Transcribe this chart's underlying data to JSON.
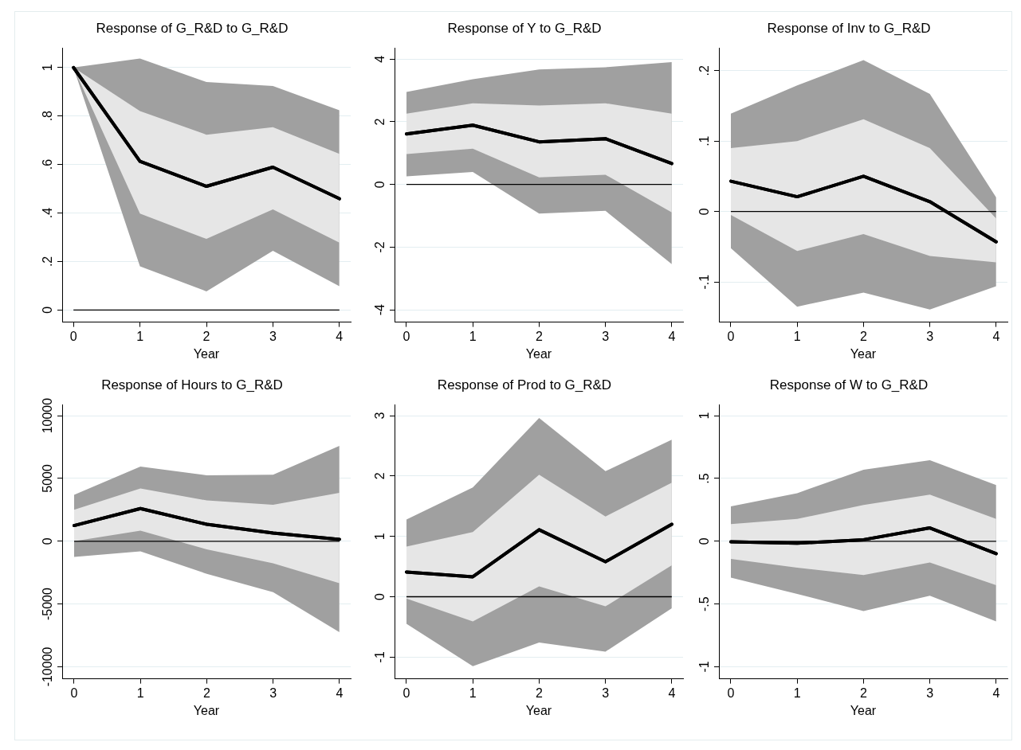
{
  "chart_data": [
    {
      "type": "line",
      "title": "Response of G_R&D to G_R&D",
      "xlabel": "Year",
      "x": [
        0,
        1,
        2,
        3,
        4
      ],
      "xlim": [
        -0.17,
        4.17
      ],
      "xticks": [
        0,
        1,
        2,
        3,
        4
      ],
      "ylim": [
        -0.05,
        1.08
      ],
      "yticks": [
        0,
        {
          "value": 0.2,
          "label": ".2"
        },
        {
          "value": 0.4,
          "label": ".4"
        },
        {
          "value": 0.6,
          "label": ".6"
        },
        {
          "value": 0.8,
          "label": ".8"
        },
        1
      ],
      "grid": "y",
      "legend": false,
      "ref_lines": [
        {
          "axis": "y",
          "value": 0,
          "color": "#000000"
        }
      ],
      "series": [
        {
          "type": "line",
          "color": "#000000",
          "values": [
            1,
            0.613,
            0.51,
            0.589,
            0.459
          ],
          "lower": [
            1,
            0.18,
            0.077,
            0.244,
            0.098
          ],
          "upper": [
            1,
            1.037,
            0.94,
            0.924,
            0.824
          ]
        },
        {
          "type": "line",
          "color": "#000000",
          "values": [
            1,
            0.613,
            0.51,
            0.589,
            0.459
          ],
          "lower": [
            1,
            0.398,
            0.293,
            0.415,
            0.278
          ],
          "upper": [
            1,
            0.82,
            0.723,
            0.754,
            0.644
          ]
        }
      ]
    },
    {
      "type": "line",
      "title": "Response of Y to G_R&D",
      "xlabel": "Year",
      "x": [
        0,
        1,
        2,
        3,
        4
      ],
      "xlim": [
        -0.18,
        4.17
      ],
      "xticks": [
        0,
        1,
        2,
        3,
        4
      ],
      "ylim": [
        -4.39,
        4.35
      ],
      "yticks": [
        -4,
        -2,
        0,
        2,
        4
      ],
      "grid": "y",
      "legend": false,
      "ref_lines": [
        {
          "axis": "y",
          "value": 0,
          "color": "#000000"
        }
      ],
      "series": [
        {
          "type": "line",
          "color": "#000000",
          "values": [
            1.61,
            1.89,
            1.36,
            1.46,
            0.67
          ],
          "lower": [
            0.26,
            0.4,
            -0.93,
            -0.84,
            -2.54
          ],
          "upper": [
            2.95,
            3.36,
            3.67,
            3.74,
            3.9
          ]
        },
        {
          "type": "line",
          "color": "#000000",
          "values": [
            1.61,
            1.89,
            1.36,
            1.46,
            0.67
          ],
          "lower": [
            0.97,
            1.14,
            0.23,
            0.31,
            -0.89
          ],
          "upper": [
            2.26,
            2.59,
            2.52,
            2.59,
            2.26
          ]
        }
      ]
    },
    {
      "type": "line",
      "title": "Response of Inv to G_R&D",
      "xlabel": "Year",
      "x": [
        0,
        1,
        2,
        3,
        4
      ],
      "xlim": [
        -0.18,
        4.17
      ],
      "xticks": [
        0,
        1,
        2,
        3,
        4
      ],
      "ylim": [
        -0.157,
        0.232
      ],
      "yticks": [
        {
          "value": -0.1,
          "label": "-.1"
        },
        0,
        {
          "value": 0.1,
          "label": ".1"
        },
        {
          "value": 0.2,
          "label": ".2"
        }
      ],
      "grid": "y",
      "legend": false,
      "ref_lines": [
        {
          "axis": "y",
          "value": 0,
          "color": "#000000"
        }
      ],
      "series": [
        {
          "type": "line",
          "color": "#000000",
          "values": [
            0.043,
            0.021,
            0.05,
            0.014,
            -0.043
          ],
          "lower": [
            -0.052,
            -0.135,
            -0.115,
            -0.139,
            -0.106
          ],
          "upper": [
            0.139,
            0.179,
            0.215,
            0.167,
            0.02
          ]
        },
        {
          "type": "line",
          "color": "#000000",
          "values": [
            0.043,
            0.021,
            0.05,
            0.014,
            -0.043
          ],
          "lower": [
            -0.005,
            -0.056,
            -0.032,
            -0.063,
            -0.072
          ],
          "upper": [
            0.09,
            0.1,
            0.131,
            0.09,
            -0.01
          ]
        }
      ]
    },
    {
      "type": "line",
      "title": "Response of Hours to G_R&D",
      "xlabel": "Year",
      "x": [
        0,
        1,
        2,
        3,
        4
      ],
      "xlim": [
        -0.18,
        4.17
      ],
      "xticks": [
        0,
        1,
        2,
        3,
        4
      ],
      "ylim": [
        -10960,
        10870
      ],
      "yticks": [
        -10000,
        -5000,
        0,
        5000,
        10000
      ],
      "grid": "y",
      "legend": false,
      "ref_lines": [
        {
          "axis": "y",
          "value": 0,
          "color": "#000000"
        }
      ],
      "series": [
        {
          "type": "line",
          "color": "#000000",
          "values": [
            1250,
            2600,
            1350,
            650,
            150
          ],
          "lower": [
            -1250,
            -800,
            -2600,
            -4050,
            -7250
          ],
          "upper": [
            3700,
            5950,
            5250,
            5300,
            7600
          ]
        },
        {
          "type": "line",
          "color": "#000000",
          "values": [
            1250,
            2600,
            1350,
            650,
            150
          ],
          "lower": [
            0,
            850,
            -650,
            -1750,
            -3350
          ],
          "upper": [
            2500,
            4200,
            3250,
            2900,
            3850
          ]
        }
      ]
    },
    {
      "type": "line",
      "title": "Response of Prod to G_R&D",
      "xlabel": "Year",
      "x": [
        0,
        1,
        2,
        3,
        4
      ],
      "xlim": [
        -0.18,
        4.17
      ],
      "xticks": [
        0,
        1,
        2,
        3,
        4
      ],
      "ylim": [
        -1.36,
        3.18
      ],
      "yticks": [
        -1,
        0,
        1,
        2,
        3
      ],
      "grid": "y",
      "legend": false,
      "ref_lines": [
        {
          "axis": "y",
          "value": 0,
          "color": "#000000"
        }
      ],
      "series": [
        {
          "type": "line",
          "color": "#000000",
          "values": [
            0.41,
            0.33,
            1.11,
            0.58,
            1.2
          ],
          "lower": [
            -0.45,
            -1.15,
            -0.76,
            -0.91,
            -0.19
          ],
          "upper": [
            1.28,
            1.81,
            2.96,
            2.08,
            2.6
          ]
        },
        {
          "type": "line",
          "color": "#000000",
          "values": [
            0.41,
            0.33,
            1.11,
            0.58,
            1.2
          ],
          "lower": [
            -0.03,
            -0.41,
            0.17,
            -0.16,
            0.52
          ],
          "upper": [
            0.83,
            1.07,
            2.02,
            1.33,
            1.89
          ]
        }
      ]
    },
    {
      "type": "line",
      "title": "Response of W to G_R&D",
      "xlabel": "Year",
      "x": [
        0,
        1,
        2,
        3,
        4
      ],
      "xlim": [
        -0.18,
        4.17
      ],
      "xticks": [
        0,
        1,
        2,
        3,
        4
      ],
      "ylim": [
        -1.096,
        1.087
      ],
      "yticks": [
        -1,
        {
          "value": -0.5,
          "label": "-.5"
        },
        0,
        {
          "value": 0.5,
          "label": ".5"
        },
        1
      ],
      "grid": "y",
      "legend": false,
      "ref_lines": [
        {
          "axis": "y",
          "value": 0,
          "color": "#000000"
        }
      ],
      "series": [
        {
          "type": "line",
          "color": "#000000",
          "values": [
            -0.005,
            -0.016,
            0.012,
            0.106,
            -0.099
          ],
          "lower": [
            -0.29,
            -0.42,
            -0.556,
            -0.434,
            -0.638
          ],
          "upper": [
            0.277,
            0.383,
            0.57,
            0.646,
            0.448
          ]
        },
        {
          "type": "line",
          "color": "#000000",
          "values": [
            -0.005,
            -0.016,
            0.012,
            0.106,
            -0.099
          ],
          "lower": [
            -0.141,
            -0.211,
            -0.27,
            -0.169,
            -0.35
          ],
          "upper": [
            0.136,
            0.178,
            0.289,
            0.371,
            0.178
          ]
        }
      ]
    }
  ]
}
